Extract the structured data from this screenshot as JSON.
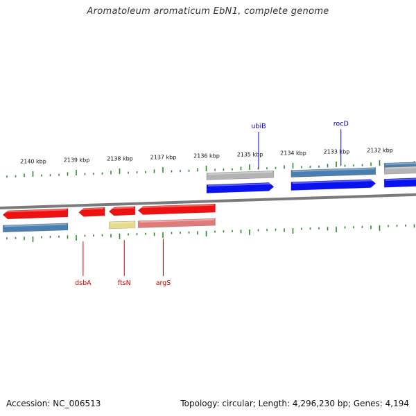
{
  "title": "Aromatoleum aromaticum EbN1, complete genome",
  "footer": {
    "accession": "Accession: NC_006513",
    "summary": "Topology: circular; Length: 4,296,230 bp; Genes: 4,194"
  },
  "colors": {
    "backbone": "#7a7a7a",
    "tick": "#2a8a2a",
    "label_text": "#111111",
    "forward_label": "#0000c0",
    "reverse_label": "#cc0000"
  },
  "ruler": {
    "unit": "kbp",
    "labels": [
      "2140 kbp",
      "2139 kbp",
      "2138 kbp",
      "2137 kbp",
      "2136 kbp",
      "2135 kbp",
      "2134 kbp",
      "2133 kbp",
      "2132 kbp"
    ]
  },
  "features": [
    {
      "id": "rev-left-cds",
      "strand": "reverse",
      "track": "cds",
      "start_kbp": 2140.7,
      "end_kbp": 2139.2,
      "color": "#ee1111",
      "label": ""
    },
    {
      "id": "rev-left-gene",
      "strand": "reverse",
      "track": "gene",
      "start_kbp": 2140.7,
      "end_kbp": 2139.2,
      "color": "#4a7fb0",
      "label": ""
    },
    {
      "id": "dsbA",
      "strand": "reverse",
      "track": "cds",
      "start_kbp": 2138.95,
      "end_kbp": 2138.35,
      "color": "#ee1111",
      "label": "dsbA"
    },
    {
      "id": "ftsN",
      "strand": "reverse",
      "track": "cds",
      "start_kbp": 2138.25,
      "end_kbp": 2137.65,
      "color": "#ee1111",
      "label": "ftsN"
    },
    {
      "id": "ftsN-gene",
      "strand": "reverse",
      "track": "gene",
      "start_kbp": 2138.25,
      "end_kbp": 2137.65,
      "color": "#e8dc8c",
      "label": ""
    },
    {
      "id": "argS",
      "strand": "reverse",
      "track": "cds",
      "start_kbp": 2137.58,
      "end_kbp": 2135.8,
      "color": "#ee1111",
      "label": "argS"
    },
    {
      "id": "argS-gene",
      "strand": "reverse",
      "track": "gene",
      "start_kbp": 2137.58,
      "end_kbp": 2135.8,
      "color": "#e07b7b",
      "label": ""
    },
    {
      "id": "ubiB-gene",
      "strand": "forward",
      "track": "gene",
      "start_kbp": 2136.0,
      "end_kbp": 2134.45,
      "color": "#b4b4b4",
      "label": ""
    },
    {
      "id": "ubiB",
      "strand": "forward",
      "track": "cds",
      "start_kbp": 2136.0,
      "end_kbp": 2134.45,
      "color": "#0b12f0",
      "label": "ubiB"
    },
    {
      "id": "rocD-gene",
      "strand": "forward",
      "track": "gene",
      "start_kbp": 2134.05,
      "end_kbp": 2132.1,
      "color": "#4a7fb0",
      "label": ""
    },
    {
      "id": "rocD",
      "strand": "forward",
      "track": "cds",
      "start_kbp": 2134.05,
      "end_kbp": 2132.1,
      "color": "#0b12f0",
      "label": "rocD"
    },
    {
      "id": "fwd-right-gene",
      "strand": "forward",
      "track": "gene",
      "start_kbp": 2131.9,
      "end_kbp": 2131.0,
      "color": "#4a7fb0",
      "label": ""
    },
    {
      "id": "fwd-right-gray",
      "strand": "forward",
      "track": "gray",
      "start_kbp": 2131.9,
      "end_kbp": 2131.0,
      "color": "#b4b4b4",
      "label": ""
    },
    {
      "id": "fwd-right-cds",
      "strand": "forward",
      "track": "cds",
      "start_kbp": 2131.9,
      "end_kbp": 2131.0,
      "color": "#0b12f0",
      "label": ""
    }
  ]
}
